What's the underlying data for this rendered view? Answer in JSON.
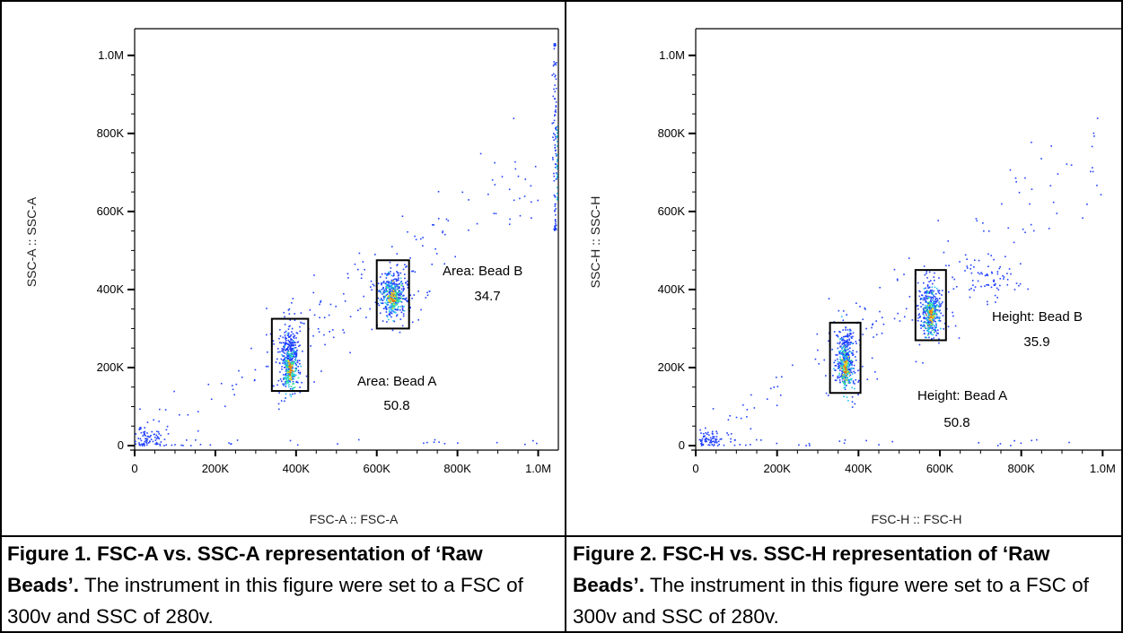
{
  "figures": [
    {
      "caption_bold": "Figure 1. FSC-A vs. SSC-A representation of ‘Raw Beads’.",
      "caption_rest": " The instrument in this figure were set to a FSC of 300v and SSC of 280v."
    },
    {
      "caption_bold": "Figure 2. FSC-H vs. SSC-H representation of ‘Raw Beads’.",
      "caption_rest": " The instrument in this figure were set to a FSC of 300v and SSC of 280v."
    }
  ],
  "colors": {
    "sparse": "#1f3fff",
    "mid": "#22c3f0",
    "dense": "#33e68a",
    "hot": "#f0d020",
    "hottest": "#f07010"
  },
  "chart_data": [
    {
      "type": "scatter",
      "title": "",
      "xlabel": "FSC-A :: FSC-A",
      "ylabel": "SSC-A :: SSC-A",
      "xlim": [
        0,
        1050000
      ],
      "ylim": [
        0,
        1050000
      ],
      "x_ticks": [
        0,
        200000,
        400000,
        600000,
        800000,
        1000000
      ],
      "x_tick_labels": [
        "0",
        "200K",
        "400K",
        "600K",
        "800K",
        "1.0M"
      ],
      "y_ticks": [
        0,
        200000,
        400000,
        600000,
        800000,
        1000000
      ],
      "y_tick_labels": [
        "0",
        "200K",
        "400K",
        "600K",
        "800K",
        "1.0M"
      ],
      "gates": [
        {
          "name": "Area: Bead A",
          "value": "50.8",
          "x0": 340000,
          "x1": 430000,
          "y0": 140000,
          "y1": 325000
        },
        {
          "name": "Area: Bead B",
          "value": "34.7",
          "x0": 600000,
          "x1": 680000,
          "y0": 300000,
          "y1": 475000
        }
      ],
      "clusters": [
        {
          "cx": 385000,
          "cy": 230000,
          "sx": 12000,
          "sy": 40000,
          "n": 340,
          "core": [
            385000,
            195000
          ]
        },
        {
          "cx": 640000,
          "cy": 390000,
          "sx": 18000,
          "sy": 30000,
          "n": 320,
          "core": [
            640000,
            380000
          ]
        }
      ]
    },
    {
      "type": "scatter",
      "title": "",
      "xlabel": "FSC-H :: FSC-H",
      "ylabel": "SSC-H :: SSC-H",
      "xlim": [
        0,
        1050000
      ],
      "ylim": [
        0,
        1050000
      ],
      "x_ticks": [
        0,
        200000,
        400000,
        600000,
        800000,
        1000000
      ],
      "x_tick_labels": [
        "0",
        "200K",
        "400K",
        "600K",
        "800K",
        "1.0M"
      ],
      "y_ticks": [
        0,
        200000,
        400000,
        600000,
        800000,
        1000000
      ],
      "y_tick_labels": [
        "0",
        "200K",
        "400K",
        "600K",
        "800K",
        "1.0M"
      ],
      "gates": [
        {
          "name": "Height: Bead A",
          "value": "50.8",
          "x0": 330000,
          "x1": 405000,
          "y0": 135000,
          "y1": 315000
        },
        {
          "name": "Height: Bead B",
          "value": "35.9",
          "x0": 540000,
          "x1": 615000,
          "y0": 270000,
          "y1": 450000
        }
      ],
      "clusters": [
        {
          "cx": 368000,
          "cy": 225000,
          "sx": 11000,
          "sy": 40000,
          "n": 320,
          "core": [
            368000,
            200000
          ]
        },
        {
          "cx": 578000,
          "cy": 350000,
          "sx": 13000,
          "sy": 35000,
          "n": 300,
          "core": [
            578000,
            335000
          ]
        }
      ]
    }
  ]
}
